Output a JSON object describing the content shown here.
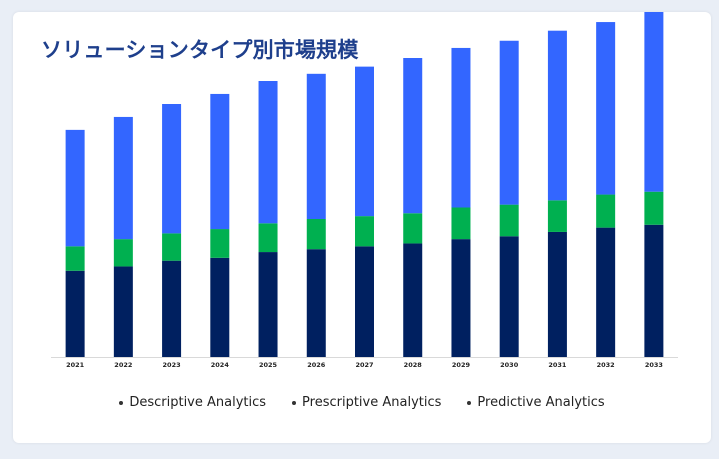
{
  "title": "ソリューションタイプ別市場規模",
  "colors": {
    "descriptive": "#3366ff",
    "prescriptive": "#00b050",
    "predictive": "#002060",
    "title": "#1e3f8c"
  },
  "chart_data": {
    "type": "bar",
    "stacked": true,
    "categories": [
      "2021",
      "2022",
      "2023",
      "2024",
      "2025",
      "2026",
      "2027",
      "2028",
      "2029",
      "2030",
      "2031",
      "2032",
      "2033"
    ],
    "series": [
      {
        "name": "Predictive Analytics",
        "color": "#002060",
        "values": [
          60,
          63,
          67,
          69,
          73,
          75,
          77,
          79,
          82,
          84,
          87,
          90,
          92
        ]
      },
      {
        "name": "Prescriptive Analytics",
        "color": "#00b050",
        "values": [
          17,
          19,
          19,
          20,
          20,
          21,
          21,
          21,
          22,
          22,
          22,
          23,
          23
        ]
      },
      {
        "name": "Descriptive Analytics",
        "color": "#3366ff",
        "values": [
          81,
          85,
          90,
          94,
          99,
          101,
          104,
          108,
          111,
          114,
          118,
          120,
          125
        ]
      }
    ],
    "ylim": [
      0,
      240
    ],
    "grid": false,
    "legend_position": "bottom",
    "legend_order": [
      "Descriptive Analytics",
      "Prescriptive Analytics",
      "Predictive Analytics"
    ]
  }
}
